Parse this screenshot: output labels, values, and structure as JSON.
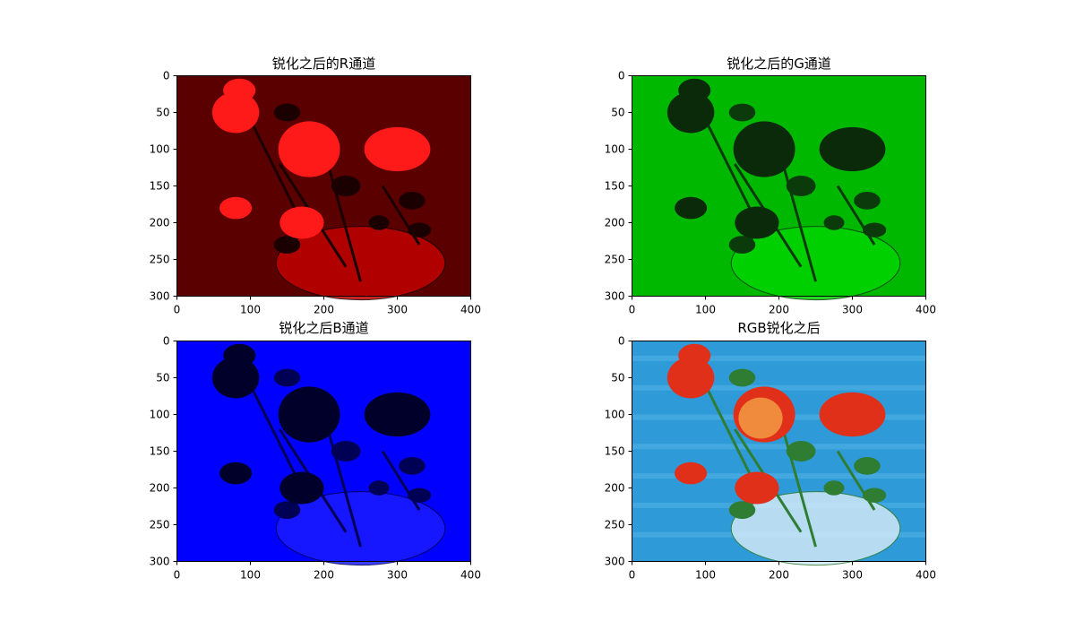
{
  "chart_data": [
    {
      "type": "image",
      "title": "锐化之后的R通道",
      "channel": "R",
      "colors": {
        "bg": "#5a0000",
        "flower": "#ff1a1a",
        "dark": "#1a0000",
        "vase": "#c00000"
      },
      "xlim": [
        0,
        400
      ],
      "ylim": [
        300,
        0
      ],
      "xticks": [
        "0",
        "100",
        "200",
        "300",
        "400"
      ],
      "yticks": [
        "0",
        "50",
        "100",
        "150",
        "200",
        "250",
        "300"
      ]
    },
    {
      "type": "image",
      "title": "锐化之后的G通道",
      "channel": "G",
      "colors": {
        "bg": "#00b800",
        "flower": "#0a2a0a",
        "dark": "#0b3b0b",
        "vase": "#00d400"
      },
      "xlim": [
        0,
        400
      ],
      "ylim": [
        300,
        0
      ],
      "xticks": [
        "0",
        "100",
        "200",
        "300",
        "400"
      ],
      "yticks": [
        "0",
        "50",
        "100",
        "150",
        "200",
        "250",
        "300"
      ]
    },
    {
      "type": "image",
      "title": "锐化之后B通道",
      "channel": "B",
      "colors": {
        "bg": "#0000ff",
        "flower": "#00002a",
        "dark": "#000055",
        "vase": "#1a1aff"
      },
      "xlim": [
        0,
        400
      ],
      "ylim": [
        300,
        0
      ],
      "xticks": [
        "0",
        "100",
        "200",
        "300",
        "400"
      ],
      "yticks": [
        "0",
        "50",
        "100",
        "150",
        "200",
        "250",
        "300"
      ]
    },
    {
      "type": "image",
      "title": "RGB锐化之后",
      "channel": "RGB",
      "colors": {
        "bg": "#2f9ad8",
        "flower": "#e0301a",
        "dark": "#2e7d32",
        "vase": "#cfe8f6"
      },
      "xlim": [
        0,
        400
      ],
      "ylim": [
        300,
        0
      ],
      "xticks": [
        "0",
        "100",
        "200",
        "300",
        "400"
      ],
      "yticks": [
        "0",
        "50",
        "100",
        "150",
        "200",
        "250",
        "300"
      ]
    }
  ]
}
